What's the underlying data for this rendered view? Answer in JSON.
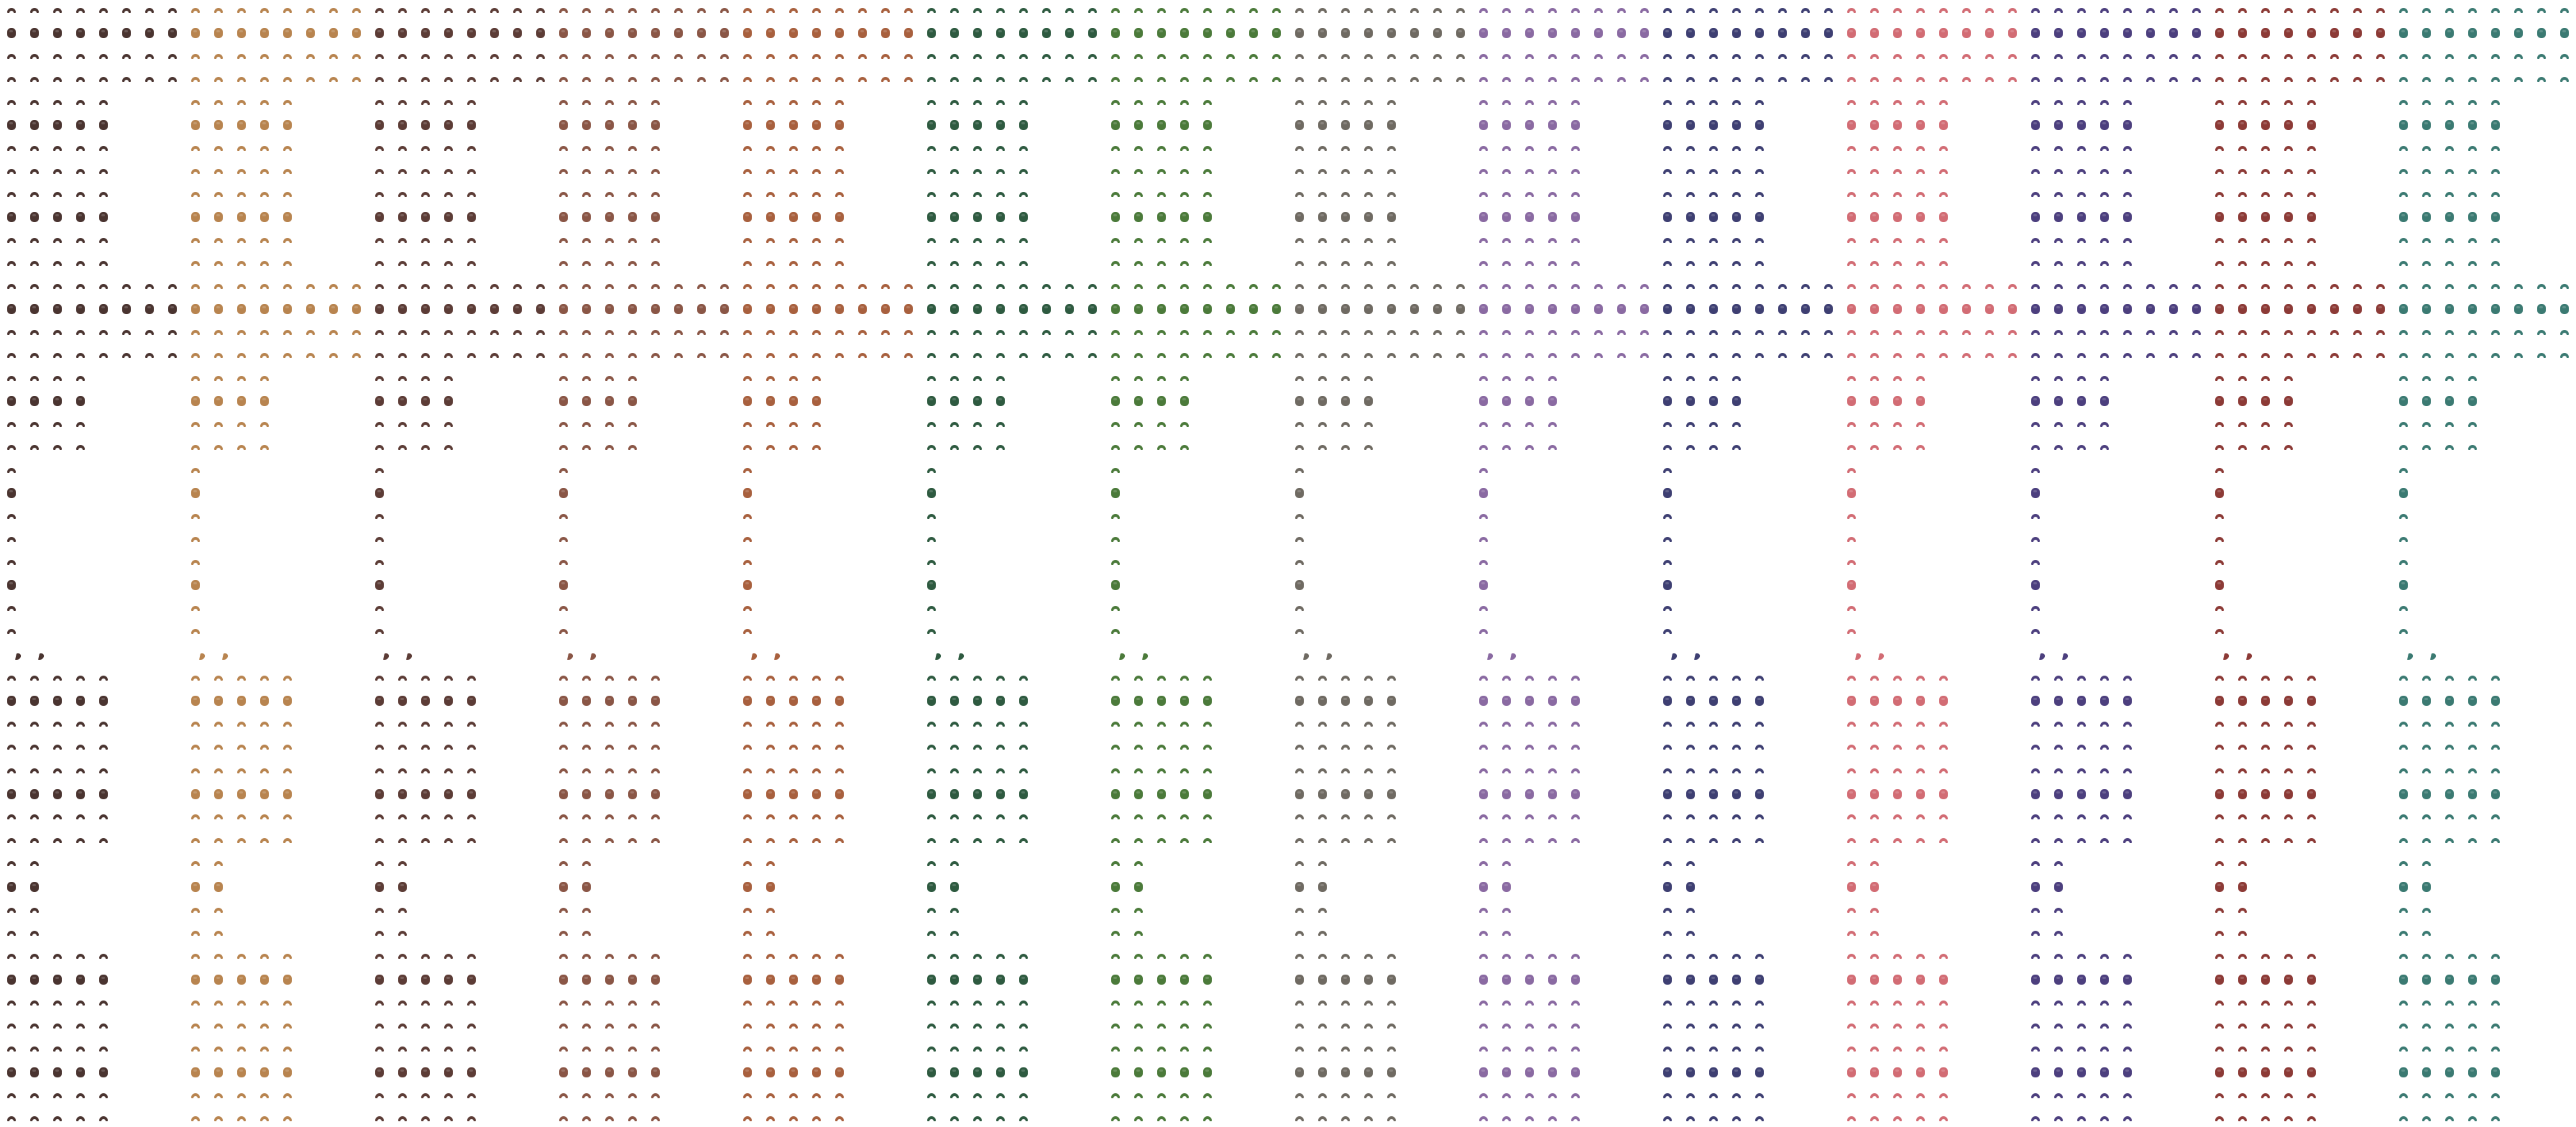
{
  "sheet": {
    "palettes": [
      {
        "name": "dark-brown",
        "color": "#4a3430"
      },
      {
        "name": "tan",
        "color": "#b8844f"
      },
      {
        "name": "brown",
        "color": "#5c3c36"
      },
      {
        "name": "reddish-brown",
        "color": "#8a5646"
      },
      {
        "name": "orange-brown",
        "color": "#a8603e"
      },
      {
        "name": "dark-green",
        "color": "#2e5a40"
      },
      {
        "name": "green",
        "color": "#4b7a3a"
      },
      {
        "name": "gray",
        "color": "#6f6a62"
      },
      {
        "name": "purple",
        "color": "#8a6aa2"
      },
      {
        "name": "navy",
        "color": "#3e3f72"
      },
      {
        "name": "pink",
        "color": "#d26c74"
      },
      {
        "name": "indigo",
        "color": "#4c3f7e"
      },
      {
        "name": "dark-red",
        "color": "#8c3a36"
      },
      {
        "name": "teal",
        "color": "#3b7a72"
      }
    ],
    "top_groups": [
      {
        "cols": 8,
        "pattern": [
          "arc",
          "head",
          "arc",
          "arc"
        ]
      },
      {
        "cols": 5,
        "pattern": [
          "arc",
          "head",
          "arc",
          "arc"
        ]
      },
      {
        "cols": 5,
        "pattern": [
          "arc",
          "head",
          "arc",
          "arc"
        ]
      },
      {
        "cols": 8,
        "pattern": [
          "arc",
          "head",
          "arc",
          "arc"
        ]
      },
      {
        "cols": 4,
        "pattern": [
          "arc",
          "head",
          "arc",
          "arc"
        ]
      },
      {
        "cols": 1,
        "pattern": [
          "arc",
          "head",
          "arc",
          "arc"
        ]
      },
      {
        "cols": 1,
        "pattern": [
          "arc",
          "head",
          "arc",
          "arc"
        ]
      }
    ],
    "special_row": {
      "cols": 2,
      "pattern": [
        "side"
      ]
    },
    "bottom_groups": [
      {
        "cols": 5,
        "pattern": [
          "arc",
          "head",
          "arc",
          "arc"
        ]
      },
      {
        "cols": 5,
        "pattern": [
          "arc",
          "head",
          "arc",
          "arc"
        ]
      },
      {
        "cols": 2,
        "pattern": [
          "arc",
          "head",
          "arc",
          "arc"
        ]
      },
      {
        "cols": 5,
        "pattern": [
          "arc",
          "head",
          "arc",
          "arc"
        ]
      },
      {
        "cols": 5,
        "pattern": [
          "arc",
          "head",
          "arc",
          "arc"
        ]
      }
    ]
  }
}
